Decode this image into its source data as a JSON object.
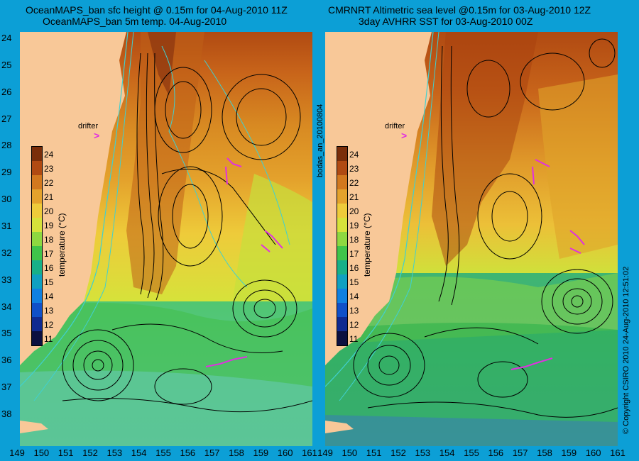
{
  "left_panel": {
    "title1": "OceanMAPS_ban sfc height @ 0.15m for 04-Aug-2010 11Z",
    "title2": "OceanMAPS_ban 5m temp. 04-Aug-2010",
    "drifter_label": "drifter",
    "drifter_marker": ">"
  },
  "right_panel": {
    "title1": "CMRNRT Altimetric sea level  @0.15m  for 03-Aug-2010 12Z",
    "title2": "3day AVHRR SST for 03-Aug-2010 00Z",
    "drifter_label": "drifter",
    "drifter_marker": ">"
  },
  "legend": {
    "title": "temperature (°C)",
    "ticks": [
      "24",
      "23",
      "22",
      "21",
      "20",
      "19",
      "18",
      "17",
      "16",
      "15",
      "14",
      "13",
      "12",
      "11"
    ],
    "colors": [
      "#7a2e0a",
      "#b04a12",
      "#d2781e",
      "#e4a22c",
      "#eecb3a",
      "#d6e23a",
      "#8ed840",
      "#40c44a",
      "#18b088",
      "#10a0c0",
      "#1080e0",
      "#1050c8",
      "#102a90",
      "#0c1040"
    ]
  },
  "y_ticks": [
    "24",
    "25",
    "26",
    "27",
    "28",
    "29",
    "30",
    "31",
    "32",
    "33",
    "34",
    "35",
    "36",
    "37",
    "38"
  ],
  "x_ticks": [
    "149",
    "150",
    "151",
    "152",
    "153",
    "154",
    "155",
    "156",
    "157",
    "158",
    "159",
    "160",
    "161"
  ],
  "side_labels": {
    "mid": "bodas_an_20100804",
    "right": "© Copyright CSIRO 2010   24-Aug-2010 12:51:02"
  },
  "colors": {
    "background": "#0c9fd6",
    "land": "#f8c898",
    "drifter": "#e030e0",
    "contour": "#000000",
    "isobath": "#40d0d0"
  }
}
